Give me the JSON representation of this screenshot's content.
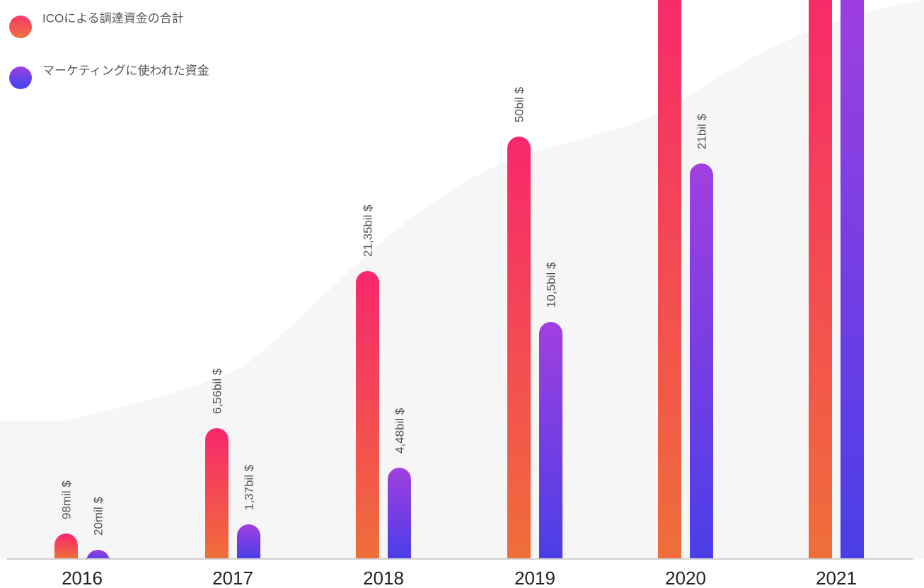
{
  "legend": [
    "ICOによる調達資金の合計",
    "マーケティングに使われた資金"
  ],
  "groups": [
    {
      "year": "2016",
      "ico": "98mil $",
      "marketing": "20mil $"
    },
    {
      "year": "2017",
      "ico": "6,56bil $",
      "marketing": "1,37bil $"
    },
    {
      "year": "2018",
      "ico": "21,35bil $",
      "marketing": "4,48bil $"
    },
    {
      "year": "2019",
      "ico": "50bil $",
      "marketing": "10,5bil $"
    },
    {
      "year": "2020",
      "marketing": "21bil $"
    },
    {
      "year": "2021"
    }
  ]
}
